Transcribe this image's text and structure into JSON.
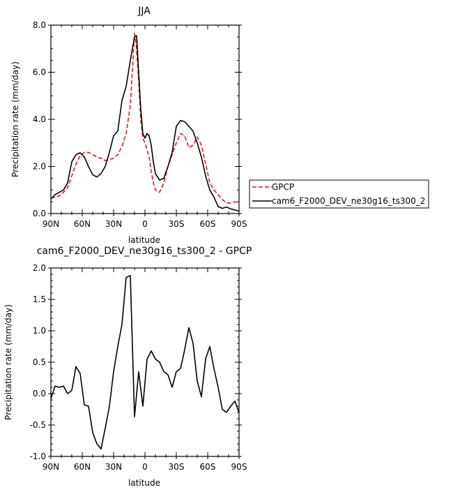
{
  "chart_data": [
    {
      "type": "line",
      "title": "JJA",
      "xlabel": "latitude",
      "ylabel": "Precipitation rate  (mm/day)",
      "xlim": [
        90,
        -90
      ],
      "ylim": [
        0,
        8
      ],
      "x_ticks": [
        "90N",
        "60N",
        "30N",
        "0",
        "30S",
        "60S",
        "90S"
      ],
      "y_ticks": [
        "0.0",
        "2.0",
        "4.0",
        "6.0",
        "8.0"
      ],
      "legend_position": "right",
      "x": [
        90,
        86,
        82,
        78,
        74,
        70,
        66,
        62,
        58,
        54,
        50,
        46,
        42,
        38,
        34,
        30,
        26,
        22,
        18,
        14,
        10,
        8,
        6,
        4,
        2,
        0,
        -2,
        -4,
        -6,
        -8,
        -10,
        -14,
        -18,
        -22,
        -26,
        -30,
        -34,
        -38,
        -42,
        -46,
        -50,
        -54,
        -58,
        -62,
        -66,
        -70,
        -74,
        -78,
        -82,
        -86,
        -90
      ],
      "series": [
        {
          "name": "GPCP",
          "color": "#e31a1c",
          "dash": "dashed",
          "values": [
            0.65,
            0.7,
            0.75,
            0.9,
            1.1,
            1.6,
            2.1,
            2.45,
            2.6,
            2.6,
            2.5,
            2.4,
            2.35,
            2.25,
            2.3,
            2.35,
            2.5,
            2.85,
            3.4,
            4.6,
            7.65,
            7.0,
            5.6,
            4.0,
            3.2,
            3.0,
            2.7,
            2.4,
            1.8,
            1.3,
            1.0,
            0.9,
            1.3,
            2.0,
            2.5,
            3.0,
            3.4,
            3.3,
            2.8,
            2.9,
            3.25,
            2.9,
            2.1,
            1.3,
            1.0,
            0.8,
            0.6,
            0.45,
            0.45,
            0.5,
            0.45
          ]
        },
        {
          "name": "cam6_F2000_DEV_ne30g16_ts300_2",
          "color": "#000000",
          "dash": "solid",
          "values": [
            0.62,
            0.8,
            0.9,
            1.0,
            1.3,
            2.2,
            2.5,
            2.58,
            2.4,
            2.0,
            1.65,
            1.55,
            1.7,
            2.0,
            2.6,
            3.3,
            3.5,
            4.8,
            5.4,
            6.5,
            7.5,
            7.55,
            6.0,
            4.4,
            3.4,
            3.2,
            3.4,
            3.3,
            2.9,
            2.2,
            1.7,
            1.42,
            1.5,
            2.0,
            2.6,
            3.7,
            3.95,
            3.9,
            3.7,
            3.5,
            3.0,
            2.4,
            1.6,
            1.0,
            0.7,
            0.3,
            0.22,
            0.28,
            0.2,
            0.15,
            0.1
          ]
        }
      ]
    },
    {
      "type": "line",
      "title": "cam6_F2000_DEV_ne30g16_ts300_2 - GPCP",
      "xlabel": "latitude",
      "ylabel": "Precipitation rate  (mm/day)",
      "xlim": [
        90,
        -90
      ],
      "ylim": [
        -1,
        2
      ],
      "x_ticks": [
        "90N",
        "60N",
        "30N",
        "0",
        "30S",
        "60S",
        "90S"
      ],
      "y_ticks": [
        "-1.0",
        "-0.5",
        "0.0",
        "0.5",
        "1.0",
        "1.5",
        "2.0"
      ],
      "x": [
        90,
        86,
        82,
        78,
        74,
        70,
        66,
        62,
        58,
        54,
        50,
        46,
        42,
        38,
        34,
        30,
        26,
        22,
        18,
        14,
        10,
        6,
        2,
        -2,
        -6,
        -10,
        -14,
        -18,
        -22,
        -26,
        -30,
        -34,
        -38,
        -42,
        -46,
        -50,
        -54,
        -58,
        -62,
        -66,
        -70,
        -74,
        -78,
        -82,
        -86,
        -90
      ],
      "series": [
        {
          "name": "",
          "color": "#000000",
          "dash": "solid",
          "values": [
            -0.08,
            0.12,
            0.1,
            0.12,
            0.0,
            0.05,
            0.43,
            0.32,
            -0.18,
            -0.2,
            -0.62,
            -0.8,
            -0.88,
            -0.55,
            -0.2,
            0.35,
            0.75,
            1.1,
            1.85,
            1.88,
            -0.37,
            0.35,
            -0.2,
            0.55,
            0.68,
            0.55,
            0.5,
            0.35,
            0.3,
            0.1,
            0.35,
            0.4,
            0.7,
            1.05,
            0.8,
            0.2,
            -0.05,
            0.55,
            0.75,
            0.4,
            0.1,
            -0.25,
            -0.3,
            -0.2,
            -0.12,
            -0.3
          ]
        }
      ]
    }
  ]
}
